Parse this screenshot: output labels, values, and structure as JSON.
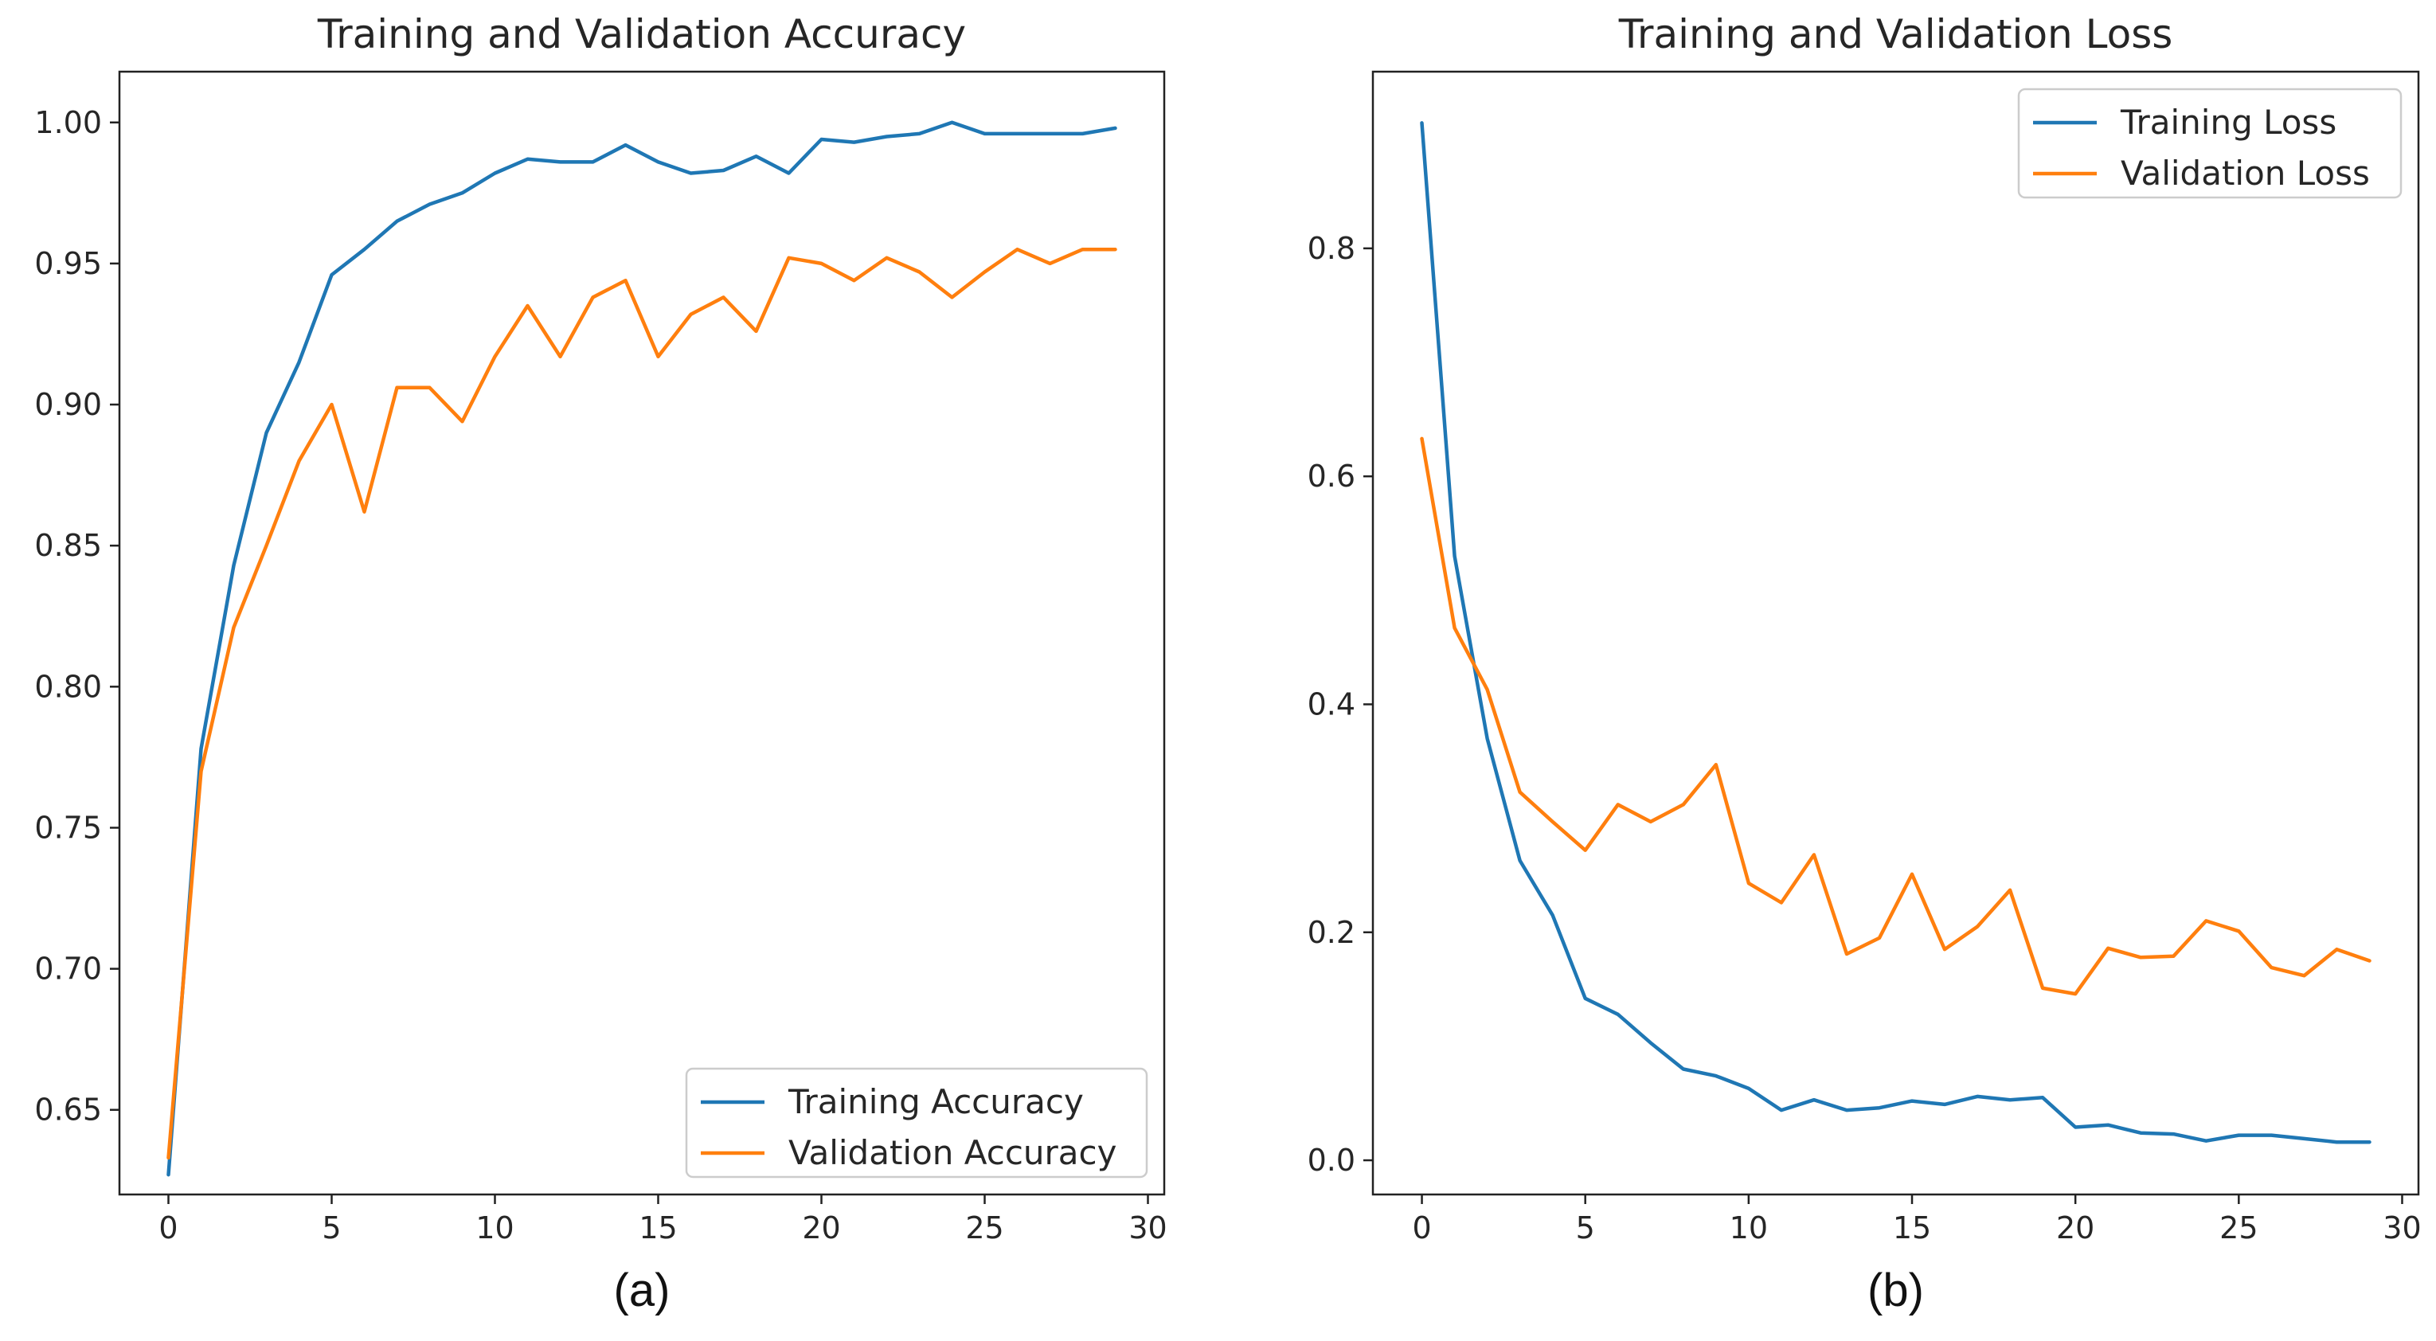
{
  "colors": {
    "training": "#1f77b4",
    "validation": "#ff7f0e"
  },
  "chart_data": [
    {
      "type": "line",
      "title": "Training and Validation Accuracy",
      "caption": "(a)",
      "xlabel": "",
      "ylabel": "",
      "xlim": [
        -1.5,
        30.5
      ],
      "ylim": [
        0.62,
        1.018
      ],
      "xticks": [
        0,
        5,
        10,
        15,
        20,
        25,
        30
      ],
      "xtick_labels": [
        "0",
        "5",
        "10",
        "15",
        "20",
        "25",
        "30"
      ],
      "yticks": [
        0.65,
        0.7,
        0.75,
        0.8,
        0.85,
        0.9,
        0.95,
        1.0
      ],
      "ytick_labels": [
        "0.65",
        "0.70",
        "0.75",
        "0.80",
        "0.85",
        "0.90",
        "0.95",
        "1.00"
      ],
      "legend": "lower-right",
      "x": [
        0,
        1,
        2,
        3,
        4,
        5,
        6,
        7,
        8,
        9,
        10,
        11,
        12,
        13,
        14,
        15,
        16,
        17,
        18,
        19,
        20,
        21,
        22,
        23,
        24,
        25,
        26,
        27,
        28,
        29
      ],
      "series": [
        {
          "name": "Training Accuracy",
          "color_key": "training",
          "values": [
            0.627,
            0.778,
            0.843,
            0.89,
            0.915,
            0.946,
            0.955,
            0.965,
            0.971,
            0.975,
            0.982,
            0.987,
            0.986,
            0.986,
            0.992,
            0.986,
            0.982,
            0.983,
            0.988,
            0.982,
            0.994,
            0.993,
            0.995,
            0.996,
            1.0,
            0.996,
            0.996,
            0.996,
            0.996,
            0.998
          ]
        },
        {
          "name": "Validation Accuracy",
          "color_key": "validation",
          "values": [
            0.633,
            0.77,
            0.821,
            0.85,
            0.88,
            0.9,
            0.862,
            0.906,
            0.906,
            0.894,
            0.917,
            0.935,
            0.917,
            0.938,
            0.944,
            0.917,
            0.932,
            0.938,
            0.926,
            0.952,
            0.95,
            0.944,
            0.952,
            0.947,
            0.938,
            0.947,
            0.955,
            0.95,
            0.955,
            0.955
          ]
        }
      ]
    },
    {
      "type": "line",
      "title": "Training and Validation Loss",
      "caption": "(b)",
      "xlabel": "",
      "ylabel": "",
      "xlim": [
        -1.5,
        30.5
      ],
      "ylim": [
        -0.03,
        0.955
      ],
      "xticks": [
        0,
        5,
        10,
        15,
        20,
        25,
        30
      ],
      "xtick_labels": [
        "0",
        "5",
        "10",
        "15",
        "20",
        "25",
        "30"
      ],
      "yticks": [
        0.0,
        0.2,
        0.4,
        0.6,
        0.8
      ],
      "ytick_labels": [
        "0.0",
        "0.2",
        "0.4",
        "0.6",
        "0.8"
      ],
      "legend": "upper-right",
      "x": [
        0,
        1,
        2,
        3,
        4,
        5,
        6,
        7,
        8,
        9,
        10,
        11,
        12,
        13,
        14,
        15,
        16,
        17,
        18,
        19,
        20,
        21,
        22,
        23,
        24,
        25,
        26,
        27,
        28,
        29
      ],
      "series": [
        {
          "name": "Training Loss",
          "color_key": "training",
          "values": [
            0.91,
            0.53,
            0.37,
            0.263,
            0.215,
            0.142,
            0.128,
            0.103,
            0.08,
            0.074,
            0.063,
            0.044,
            0.053,
            0.044,
            0.046,
            0.052,
            0.049,
            0.056,
            0.053,
            0.055,
            0.029,
            0.031,
            0.024,
            0.023,
            0.017,
            0.022,
            0.022,
            0.019,
            0.016,
            0.016
          ]
        },
        {
          "name": "Validation Loss",
          "color_key": "validation",
          "values": [
            0.633,
            0.467,
            0.413,
            0.323,
            0.297,
            0.272,
            0.312,
            0.297,
            0.312,
            0.347,
            0.243,
            0.226,
            0.268,
            0.181,
            0.195,
            0.251,
            0.185,
            0.205,
            0.237,
            0.151,
            0.146,
            0.186,
            0.178,
            0.179,
            0.21,
            0.201,
            0.169,
            0.162,
            0.185,
            0.175
          ]
        }
      ]
    }
  ]
}
